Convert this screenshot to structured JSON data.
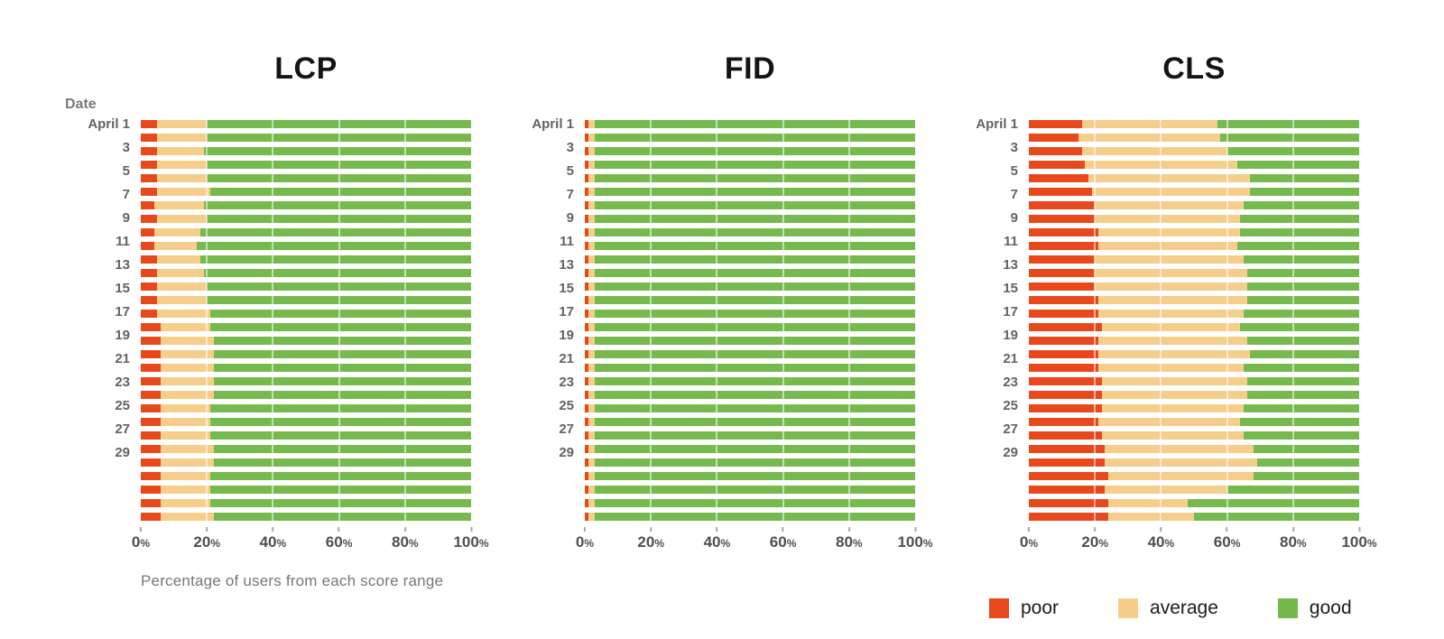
{
  "xaxis_note": "Percentage of users from each score range",
  "colors": {
    "poor": "#E8491C",
    "average": "#F6CE8B",
    "good": "#76BA4E"
  },
  "legend": [
    {
      "label": "poor",
      "color": "#E8491C"
    },
    {
      "label": "average",
      "color": "#F6CE8B"
    },
    {
      "label": "good",
      "color": "#76BA4E"
    }
  ],
  "chart_data": {
    "type": "bar",
    "orientation": "horizontal",
    "stacked": true,
    "x_axis": {
      "ticks": [
        "0%",
        "20%",
        "40%",
        "60%",
        "80%",
        "100%"
      ],
      "positions": [
        0,
        20,
        40,
        60,
        80,
        100
      ],
      "range": [
        0,
        100
      ]
    },
    "series_order": [
      "poor",
      "average",
      "good"
    ],
    "day_format": [
      "label",
      "poor_pct",
      "average_pct"
    ],
    "good_pct_rule": "good = 100 - poor - average",
    "charts": [
      {
        "id": "lcp",
        "title": "LCP",
        "corner_label": "Date",
        "days": [
          [
            "April 1",
            5,
            15
          ],
          [
            "",
            5,
            15
          ],
          [
            "3",
            5,
            14
          ],
          [
            "",
            5,
            15
          ],
          [
            "5",
            5,
            15
          ],
          [
            "",
            5,
            16
          ],
          [
            "7",
            4,
            15
          ],
          [
            "",
            5,
            15
          ],
          [
            "9",
            4,
            14
          ],
          [
            "",
            4,
            13
          ],
          [
            "11",
            5,
            13
          ],
          [
            "",
            5,
            14
          ],
          [
            "13",
            5,
            15
          ],
          [
            "",
            5,
            15
          ],
          [
            "15",
            5,
            16
          ],
          [
            "",
            6,
            15
          ],
          [
            "17",
            6,
            16
          ],
          [
            "",
            6,
            16
          ],
          [
            "19",
            6,
            16
          ],
          [
            "",
            6,
            16
          ],
          [
            "21",
            6,
            16
          ],
          [
            "",
            6,
            15
          ],
          [
            "23",
            6,
            15
          ],
          [
            "",
            6,
            15
          ],
          [
            "25",
            6,
            16
          ],
          [
            "",
            6,
            16
          ],
          [
            "27",
            6,
            15
          ],
          [
            "",
            6,
            15
          ],
          [
            "29",
            6,
            15
          ],
          [
            "",
            6,
            16
          ]
        ]
      },
      {
        "id": "fid",
        "title": "FID",
        "corner_label": "",
        "days": [
          [
            "April 1",
            1.2,
            1.8
          ],
          [
            "",
            1.2,
            1.8
          ],
          [
            "3",
            1.2,
            1.8
          ],
          [
            "",
            1.2,
            1.8
          ],
          [
            "5",
            1.2,
            1.8
          ],
          [
            "",
            1.2,
            1.8
          ],
          [
            "7",
            1.2,
            1.8
          ],
          [
            "",
            1.2,
            1.8
          ],
          [
            "9",
            1.2,
            1.8
          ],
          [
            "",
            1.2,
            1.8
          ],
          [
            "11",
            1.2,
            1.8
          ],
          [
            "",
            1.2,
            1.8
          ],
          [
            "13",
            1.2,
            1.8
          ],
          [
            "",
            1.2,
            1.8
          ],
          [
            "15",
            1.2,
            1.8
          ],
          [
            "",
            1.2,
            1.8
          ],
          [
            "17",
            1.2,
            1.8
          ],
          [
            "",
            1.2,
            1.8
          ],
          [
            "19",
            1.2,
            1.8
          ],
          [
            "",
            1.2,
            1.8
          ],
          [
            "21",
            1.2,
            1.8
          ],
          [
            "",
            1.2,
            1.8
          ],
          [
            "23",
            1.2,
            1.8
          ],
          [
            "",
            1.2,
            1.8
          ],
          [
            "25",
            1.2,
            1.8
          ],
          [
            "",
            1.2,
            1.8
          ],
          [
            "27",
            1.2,
            1.8
          ],
          [
            "",
            1.2,
            1.8
          ],
          [
            "29",
            1.2,
            1.8
          ],
          [
            "",
            1.2,
            1.8
          ]
        ]
      },
      {
        "id": "cls",
        "title": "CLS",
        "corner_label": "",
        "days": [
          [
            "April 1",
            16,
            41
          ],
          [
            "",
            15,
            43
          ],
          [
            "3",
            16,
            44
          ],
          [
            "",
            17,
            46
          ],
          [
            "5",
            18,
            49
          ],
          [
            "",
            19,
            48
          ],
          [
            "7",
            20,
            45
          ],
          [
            "",
            20,
            44
          ],
          [
            "9",
            21,
            43
          ],
          [
            "",
            21,
            42
          ],
          [
            "11",
            20,
            45
          ],
          [
            "",
            20,
            46
          ],
          [
            "13",
            20,
            46
          ],
          [
            "",
            21,
            45
          ],
          [
            "15",
            21,
            44
          ],
          [
            "",
            22,
            42
          ],
          [
            "17",
            21,
            45
          ],
          [
            "",
            21,
            46
          ],
          [
            "19",
            21,
            44
          ],
          [
            "",
            22,
            44
          ],
          [
            "21",
            22,
            44
          ],
          [
            "",
            22,
            43
          ],
          [
            "23",
            21,
            43
          ],
          [
            "",
            22,
            43
          ],
          [
            "25",
            23,
            45
          ],
          [
            "",
            23,
            46
          ],
          [
            "27",
            24,
            44
          ],
          [
            "",
            23,
            37
          ],
          [
            "29",
            24,
            24
          ],
          [
            "",
            24,
            26
          ]
        ]
      }
    ]
  }
}
